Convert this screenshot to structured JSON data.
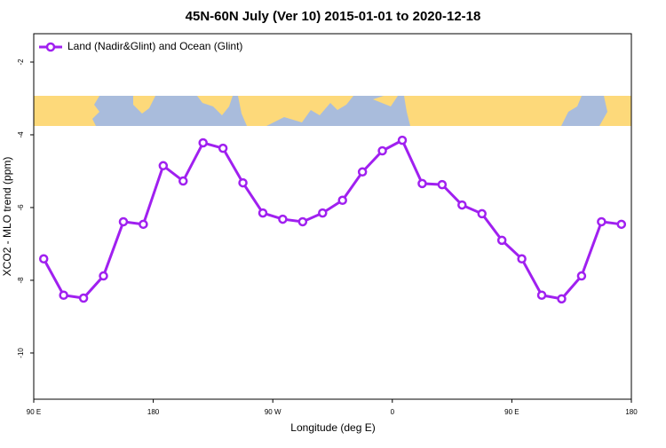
{
  "chart_data": {
    "type": "line",
    "title": "45N-60N July (Ver 10)   2015-01-01 to 2020-12-18",
    "x_label": "Longitude (deg E)",
    "y_label": "XCO2 - MLO trend (ppm)",
    "x": [
      97.5,
      112.5,
      127.5,
      142.5,
      157.5,
      172.5,
      187.5,
      202.5,
      217.5,
      232.5,
      247.5,
      262.5,
      277.5,
      292.5,
      307.5,
      322.5,
      337.5,
      352.5,
      367.5,
      382.5,
      397.5,
      412.5,
      427.5,
      442.5,
      457.5,
      472.5,
      487.5,
      502.5,
      517.5,
      532.5
    ],
    "series": [
      {
        "name": "Land (Nadir&Glint) and Ocean (Glint)",
        "color": "#a020f0",
        "values": [
          -7.41,
          -8.41,
          -8.49,
          -7.88,
          -6.39,
          -6.46,
          -4.85,
          -5.27,
          -4.22,
          -4.37,
          -5.32,
          -6.15,
          -6.32,
          -6.39,
          -6.15,
          -5.8,
          -5.02,
          -4.44,
          -4.15,
          -5.34,
          -5.37,
          -5.93,
          -6.17,
          -6.9,
          -7.41,
          -8.41,
          -8.51,
          -7.88,
          -6.39,
          -6.46
        ]
      }
    ],
    "xlim": [
      90,
      540
    ],
    "xticks": [
      {
        "value": 90,
        "label": "90 E"
      },
      180,
      {
        "value": 270,
        "label": "90 W"
      },
      {
        "value": 360,
        "label": "0"
      },
      {
        "value": 450,
        "label": "90 E"
      },
      {
        "value": 540,
        "label": "180"
      }
    ],
    "ylim": [
      -11.27,
      -1.22
    ],
    "yticks": [
      -10,
      -8,
      -6,
      -4,
      -2
    ],
    "legend": "top-left"
  }
}
